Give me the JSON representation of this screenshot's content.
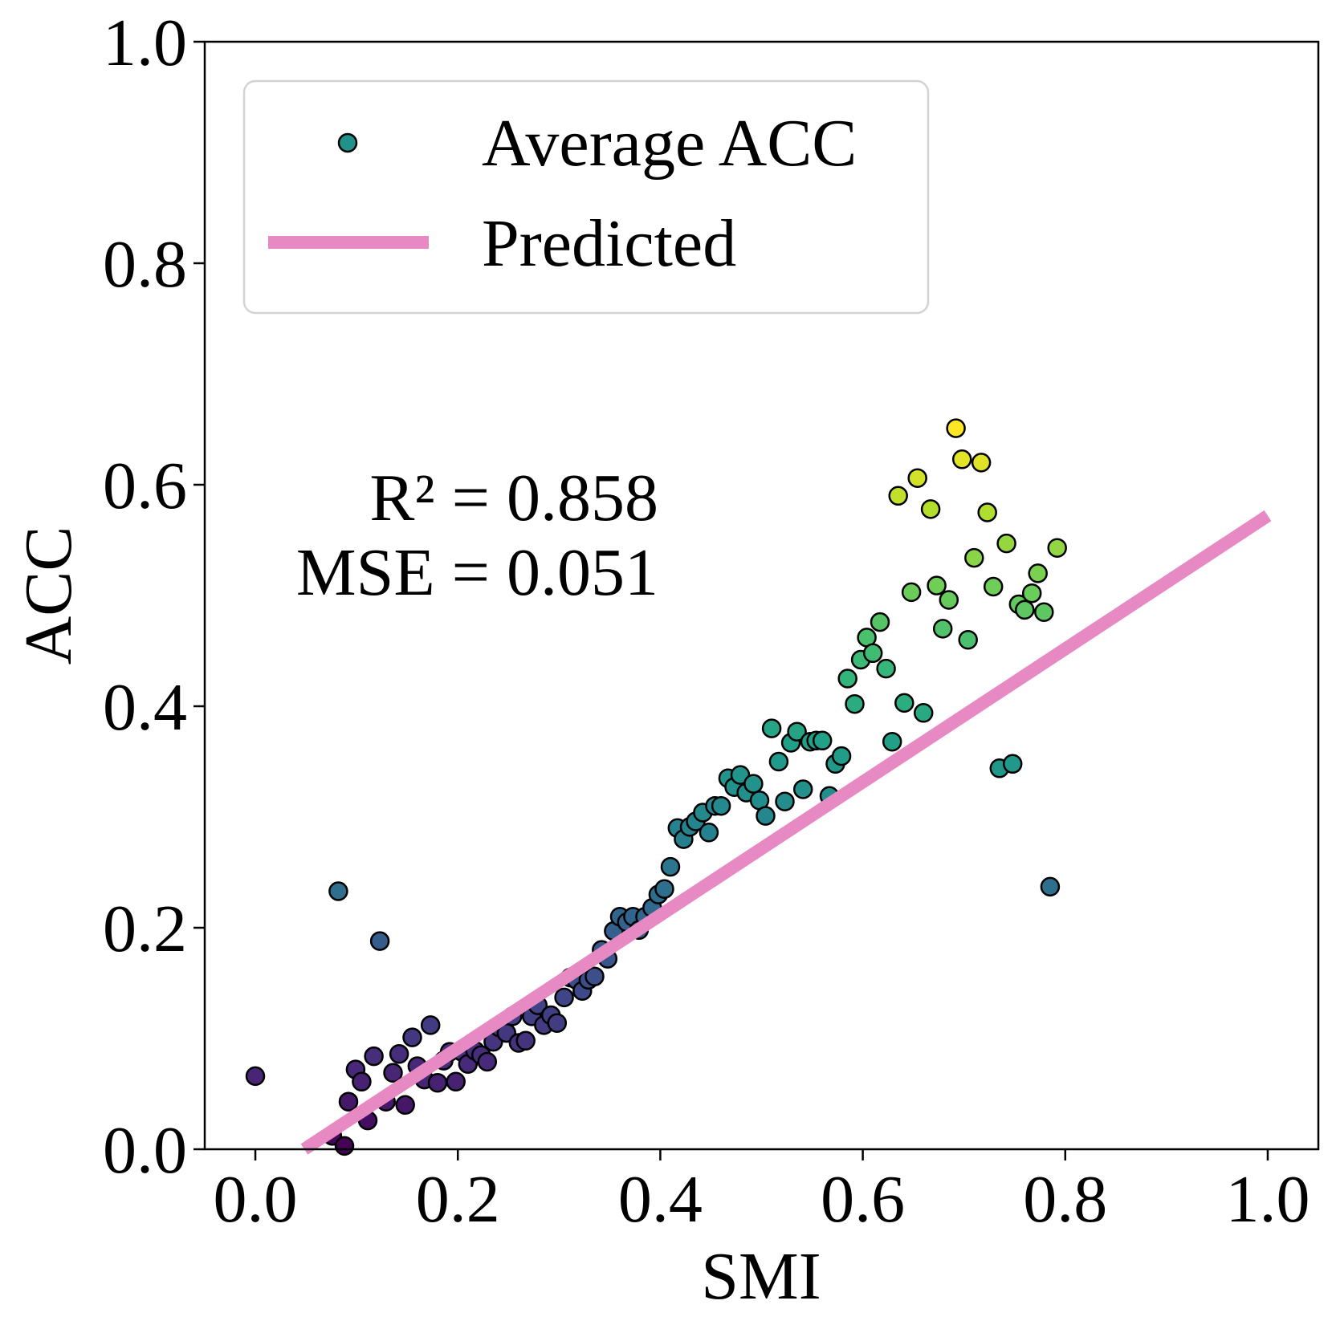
{
  "chart_data": {
    "type": "scatter",
    "title": "",
    "xlabel": "SMI",
    "ylabel": "ACC",
    "xlim": [
      -0.05,
      1.05
    ],
    "ylim": [
      0.0,
      1.0
    ],
    "xticks": [
      "0.0",
      "0.2",
      "0.4",
      "0.6",
      "0.8",
      "1.0"
    ],
    "yticks": [
      "0.0",
      "0.2",
      "0.4",
      "0.6",
      "0.8",
      "1.0"
    ],
    "legend": {
      "position": "top-left",
      "entries": [
        {
          "label": "Average ACC",
          "kind": "marker",
          "color": "#21918c"
        },
        {
          "label": "Predicted",
          "kind": "line",
          "color": "#e78ac3"
        }
      ]
    },
    "annotations": {
      "r2": "R² = 0.858",
      "mse": "MSE = 0.051"
    },
    "colormap": "viridis",
    "color_range": [
      0.0,
      0.65
    ],
    "fit_line": {
      "x": [
        0.04,
        1.0
      ],
      "y": [
        -0.005,
        0.572
      ],
      "color": "#e78ac3"
    },
    "series": [
      {
        "name": "Average ACC",
        "points": [
          [
            0.0,
            0.066
          ],
          [
            0.076,
            0.012
          ],
          [
            0.082,
            0.233
          ],
          [
            0.088,
            0.003
          ],
          [
            0.092,
            0.043
          ],
          [
            0.099,
            0.072
          ],
          [
            0.105,
            0.061
          ],
          [
            0.111,
            0.026
          ],
          [
            0.117,
            0.084
          ],
          [
            0.123,
            0.188
          ],
          [
            0.129,
            0.043
          ],
          [
            0.136,
            0.069
          ],
          [
            0.142,
            0.086
          ],
          [
            0.148,
            0.04
          ],
          [
            0.155,
            0.101
          ],
          [
            0.16,
            0.075
          ],
          [
            0.167,
            0.063
          ],
          [
            0.173,
            0.112
          ],
          [
            0.18,
            0.06
          ],
          [
            0.186,
            0.08
          ],
          [
            0.192,
            0.088
          ],
          [
            0.198,
            0.061
          ],
          [
            0.204,
            0.088
          ],
          [
            0.21,
            0.077
          ],
          [
            0.217,
            0.089
          ],
          [
            0.223,
            0.085
          ],
          [
            0.229,
            0.079
          ],
          [
            0.235,
            0.097
          ],
          [
            0.241,
            0.11
          ],
          [
            0.248,
            0.105
          ],
          [
            0.254,
            0.12
          ],
          [
            0.26,
            0.096
          ],
          [
            0.267,
            0.098
          ],
          [
            0.273,
            0.12
          ],
          [
            0.279,
            0.13
          ],
          [
            0.285,
            0.112
          ],
          [
            0.292,
            0.121
          ],
          [
            0.298,
            0.114
          ],
          [
            0.305,
            0.137
          ],
          [
            0.311,
            0.155
          ],
          [
            0.317,
            0.153
          ],
          [
            0.323,
            0.143
          ],
          [
            0.329,
            0.153
          ],
          [
            0.335,
            0.156
          ],
          [
            0.342,
            0.18
          ],
          [
            0.348,
            0.172
          ],
          [
            0.354,
            0.197
          ],
          [
            0.36,
            0.21
          ],
          [
            0.367,
            0.205
          ],
          [
            0.373,
            0.21
          ],
          [
            0.379,
            0.198
          ],
          [
            0.385,
            0.21
          ],
          [
            0.392,
            0.218
          ],
          [
            0.398,
            0.23
          ],
          [
            0.404,
            0.235
          ],
          [
            0.41,
            0.255
          ],
          [
            0.417,
            0.29
          ],
          [
            0.423,
            0.28
          ],
          [
            0.429,
            0.291
          ],
          [
            0.435,
            0.296
          ],
          [
            0.442,
            0.304
          ],
          [
            0.448,
            0.286
          ],
          [
            0.454,
            0.31
          ],
          [
            0.46,
            0.31
          ],
          [
            0.467,
            0.335
          ],
          [
            0.473,
            0.327
          ],
          [
            0.479,
            0.338
          ],
          [
            0.485,
            0.322
          ],
          [
            0.492,
            0.33
          ],
          [
            0.498,
            0.315
          ],
          [
            0.504,
            0.301
          ],
          [
            0.51,
            0.38
          ],
          [
            0.517,
            0.35
          ],
          [
            0.523,
            0.314
          ],
          [
            0.529,
            0.367
          ],
          [
            0.535,
            0.377
          ],
          [
            0.541,
            0.325
          ],
          [
            0.548,
            0.368
          ],
          [
            0.554,
            0.369
          ],
          [
            0.56,
            0.369
          ],
          [
            0.567,
            0.319
          ],
          [
            0.573,
            0.348
          ],
          [
            0.579,
            0.355
          ],
          [
            0.585,
            0.425
          ],
          [
            0.592,
            0.402
          ],
          [
            0.598,
            0.442
          ],
          [
            0.604,
            0.462
          ],
          [
            0.61,
            0.448
          ],
          [
            0.617,
            0.476
          ],
          [
            0.623,
            0.434
          ],
          [
            0.629,
            0.368
          ],
          [
            0.635,
            0.59
          ],
          [
            0.641,
            0.403
          ],
          [
            0.648,
            0.503
          ],
          [
            0.654,
            0.606
          ],
          [
            0.66,
            0.394
          ],
          [
            0.667,
            0.578
          ],
          [
            0.673,
            0.509
          ],
          [
            0.679,
            0.47
          ],
          [
            0.685,
            0.496
          ],
          [
            0.692,
            0.651
          ],
          [
            0.698,
            0.623
          ],
          [
            0.704,
            0.46
          ],
          [
            0.71,
            0.534
          ],
          [
            0.717,
            0.62
          ],
          [
            0.723,
            0.575
          ],
          [
            0.729,
            0.508
          ],
          [
            0.735,
            0.344
          ],
          [
            0.742,
            0.547
          ],
          [
            0.748,
            0.348
          ],
          [
            0.754,
            0.492
          ],
          [
            0.76,
            0.487
          ],
          [
            0.767,
            0.502
          ],
          [
            0.773,
            0.52
          ],
          [
            0.779,
            0.485
          ],
          [
            0.785,
            0.237
          ],
          [
            0.792,
            0.543
          ]
        ]
      }
    ]
  }
}
